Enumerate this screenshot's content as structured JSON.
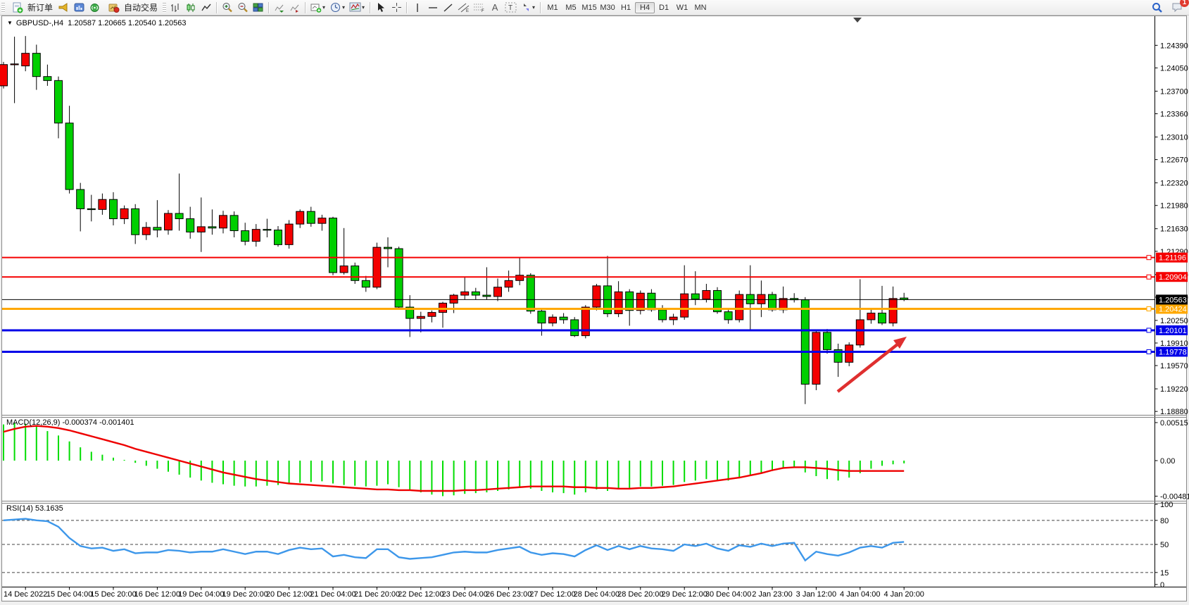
{
  "toolbar": {
    "new_order_label": "新订单",
    "autotrading_label": "自动交易",
    "timeframes": [
      "M1",
      "M5",
      "M15",
      "M30",
      "H1",
      "H4",
      "D1",
      "W1",
      "MN"
    ],
    "active_timeframe": "H4",
    "notification_count": "1"
  },
  "chart_header": {
    "symbol": "GBPUSD-,H4",
    "ohlc": "1.20587 1.20665 1.20540 1.20563"
  },
  "indicators": {
    "macd_label": "MACD(12,26,9) -0.000374 -0.001401",
    "macd_axis": [
      "0.00515",
      "0.00",
      "-0.004811"
    ],
    "rsi_label": "RSI(14) 53.1635",
    "rsi_levels": [
      "100",
      "80",
      "50",
      "15",
      "0"
    ]
  },
  "chart_data": {
    "type": "candlestick",
    "symbol": "GBPUSD-",
    "period": "H4",
    "current_price": 1.20563,
    "current_price_label": "1.20563",
    "bull_color": "#f40000",
    "bear_color": "#00cf00",
    "wick_color": "#000000",
    "macd_color": "#00dd00",
    "signal_color": "#ee0000",
    "rsi_color": "#3d97ea",
    "arrow_color": "#df2f2f",
    "price_ticks": [
      "1.24390",
      "1.24050",
      "1.23700",
      "1.23360",
      "1.23010",
      "1.22670",
      "1.22320",
      "1.21980",
      "1.21630",
      "1.21290",
      "1.20940",
      "1.20600",
      "1.20250",
      "1.19910",
      "1.19570",
      "1.19220",
      "1.18880"
    ],
    "time_labels": [
      "14 Dec 2022",
      "15 Dec 04:00",
      "15 Dec 20:00",
      "16 Dec 12:00",
      "19 Dec 04:00",
      "19 Dec 20:00",
      "20 Dec 12:00",
      "21 Dec 04:00",
      "21 Dec 20:00",
      "22 Dec 12:00",
      "23 Dec 04:00",
      "26 Dec 23:00",
      "27 Dec 12:00",
      "28 Dec 04:00",
      "28 Dec 20:00",
      "29 Dec 12:00",
      "30 Dec 04:00",
      "2 Jan 23:00",
      "3 Jan 12:00",
      "4 Jan 04:00",
      "4 Jan 20:00"
    ],
    "hlines": [
      {
        "name": "resistance-line-1",
        "price": 1.21196,
        "label": "1.21196",
        "color": "#f50000",
        "width": 2
      },
      {
        "name": "resistance-line-2",
        "price": 1.20904,
        "label": "1.20904",
        "color": "#f50000",
        "width": 2
      },
      {
        "name": "pivot-line",
        "price": 1.20424,
        "label": "1.20424",
        "color": "#ffa800",
        "width": 3
      },
      {
        "name": "support-line-1",
        "price": 1.20101,
        "label": "1.20101",
        "color": "#0000e8",
        "width": 3
      },
      {
        "name": "support-line-2",
        "price": 1.19778,
        "label": "1.19778",
        "color": "#0000e8",
        "width": 3
      }
    ],
    "candles": [
      [
        1.2378,
        1.2414,
        1.2374,
        1.241
      ],
      [
        1.241,
        1.2452,
        1.2352,
        1.2411
      ],
      [
        1.2408,
        1.2453,
        1.24,
        1.2427
      ],
      [
        1.2427,
        1.244,
        1.2372,
        1.2392
      ],
      [
        1.2392,
        1.241,
        1.2378,
        1.2386
      ],
      [
        1.2386,
        1.2392,
        1.2299,
        1.2322
      ],
      [
        1.2322,
        1.2348,
        1.2216,
        1.2222
      ],
      [
        1.2222,
        1.2232,
        1.2159,
        1.2193
      ],
      [
        1.2193,
        1.2214,
        1.2174,
        1.2192
      ],
      [
        1.2192,
        1.2216,
        1.2184,
        1.2207
      ],
      [
        1.2207,
        1.2218,
        1.2168,
        1.2178
      ],
      [
        1.2178,
        1.2198,
        1.217,
        1.2193
      ],
      [
        1.2193,
        1.22,
        1.214,
        1.2154
      ],
      [
        1.2154,
        1.2173,
        1.2146,
        1.2165
      ],
      [
        1.2165,
        1.2206,
        1.215,
        1.2161
      ],
      [
        1.2161,
        1.2191,
        1.2154,
        1.2186
      ],
      [
        1.2186,
        1.2246,
        1.216,
        1.2178
      ],
      [
        1.2178,
        1.2196,
        1.2148,
        1.2158
      ],
      [
        1.2158,
        1.221,
        1.2128,
        1.2166
      ],
      [
        1.2166,
        1.2192,
        1.2154,
        1.2164
      ],
      [
        1.2164,
        1.219,
        1.2156,
        1.2183
      ],
      [
        1.2183,
        1.2189,
        1.215,
        1.216
      ],
      [
        1.216,
        1.2172,
        1.2138,
        1.2144
      ],
      [
        1.2144,
        1.217,
        1.2136,
        1.2162
      ],
      [
        1.2162,
        1.2178,
        1.215,
        1.2161
      ],
      [
        1.2161,
        1.2167,
        1.2136,
        1.2139
      ],
      [
        1.2139,
        1.2176,
        1.2133,
        1.217
      ],
      [
        1.217,
        1.2192,
        1.2164,
        1.2189
      ],
      [
        1.2189,
        1.2196,
        1.2166,
        1.2171
      ],
      [
        1.2171,
        1.2184,
        1.216,
        1.2179
      ],
      [
        1.2179,
        1.2181,
        1.2093,
        1.2097
      ],
      [
        1.2097,
        1.2164,
        1.2094,
        1.2107
      ],
      [
        1.2107,
        1.2112,
        1.208,
        1.2085
      ],
      [
        1.2085,
        1.2092,
        1.2068,
        1.2075
      ],
      [
        1.2075,
        1.2142,
        1.2072,
        1.2135
      ],
      [
        1.2135,
        1.215,
        1.2105,
        1.2133
      ],
      [
        1.2133,
        1.2136,
        1.2041,
        1.2045
      ],
      [
        1.2045,
        1.2063,
        1.2,
        1.2028
      ],
      [
        1.2028,
        1.2038,
        1.2007,
        1.2031
      ],
      [
        1.2031,
        1.204,
        1.2022,
        1.2037
      ],
      [
        1.2037,
        1.2053,
        1.2014,
        1.2051
      ],
      [
        1.2051,
        1.2065,
        1.2036,
        1.2063
      ],
      [
        1.2063,
        1.209,
        1.2056,
        1.2068
      ],
      [
        1.2068,
        1.2074,
        1.2056,
        1.2063
      ],
      [
        1.2063,
        1.2105,
        1.2056,
        1.2061
      ],
      [
        1.2061,
        1.2088,
        1.2054,
        1.2075
      ],
      [
        1.2075,
        1.21,
        1.2068,
        1.2085
      ],
      [
        1.2085,
        1.2119,
        1.2078,
        1.2093
      ],
      [
        1.2093,
        1.2096,
        1.2035,
        1.2039
      ],
      [
        1.2039,
        1.2044,
        1.2002,
        1.2021
      ],
      [
        1.2021,
        1.2034,
        1.2016,
        1.203
      ],
      [
        1.203,
        1.2036,
        1.202,
        1.2026
      ],
      [
        1.2026,
        1.203,
        1.2,
        1.2002
      ],
      [
        1.2002,
        1.2048,
        1.1998,
        1.2045
      ],
      [
        1.2045,
        1.208,
        1.204,
        1.2077
      ],
      [
        1.2077,
        1.2122,
        1.203,
        1.2035
      ],
      [
        1.2035,
        1.2084,
        1.203,
        1.2068
      ],
      [
        1.2068,
        1.2072,
        1.2017,
        1.204
      ],
      [
        1.204,
        1.207,
        1.2034,
        1.2066
      ],
      [
        1.2066,
        1.2072,
        1.2038,
        1.2041
      ],
      [
        1.2041,
        1.2048,
        1.2022,
        1.2026
      ],
      [
        1.2026,
        1.2035,
        1.2018,
        1.203
      ],
      [
        1.203,
        1.2108,
        1.2026,
        1.2065
      ],
      [
        1.2065,
        1.2099,
        1.2048,
        1.2057
      ],
      [
        1.2057,
        1.208,
        1.2052,
        1.207
      ],
      [
        1.207,
        1.2075,
        1.2035,
        1.2038
      ],
      [
        1.2038,
        1.2044,
        1.202,
        1.2026
      ],
      [
        1.2026,
        1.207,
        1.2022,
        1.2064
      ],
      [
        1.2064,
        1.2108,
        1.201,
        1.205
      ],
      [
        1.205,
        1.2085,
        1.203,
        1.2064
      ],
      [
        1.2064,
        1.2068,
        1.2038,
        1.2041
      ],
      [
        1.2041,
        1.2076,
        1.2036,
        1.2058
      ],
      [
        1.2058,
        1.2066,
        1.2052,
        1.2056
      ],
      [
        1.2056,
        1.206,
        1.1899,
        1.1929
      ],
      [
        1.1929,
        1.201,
        1.192,
        1.2007
      ],
      [
        1.2007,
        1.2012,
        1.1975,
        1.1981
      ],
      [
        1.1981,
        1.199,
        1.194,
        1.1962
      ],
      [
        1.1962,
        1.1992,
        1.1956,
        1.1988
      ],
      [
        1.1988,
        1.2087,
        1.1984,
        1.2026
      ],
      [
        1.2026,
        1.2042,
        1.202,
        1.2036
      ],
      [
        1.2036,
        1.2077,
        1.2018,
        1.2021
      ],
      [
        1.2021,
        1.2076,
        1.2016,
        1.2058
      ],
      [
        1.20587,
        1.20665,
        1.2054,
        1.20563
      ]
    ],
    "macd_histogram": [
      0.0049,
      0.00515,
      0.005,
      0.0047,
      0.004,
      0.0034,
      0.0026,
      0.0018,
      0.0012,
      0.0008,
      0.0004,
      0.0001,
      -0.0003,
      -0.0007,
      -0.0011,
      -0.0015,
      -0.0019,
      -0.0023,
      -0.0027,
      -0.003,
      -0.0032,
      -0.0034,
      -0.0035,
      -0.0035,
      -0.0034,
      -0.0033,
      -0.0032,
      -0.003,
      -0.0029,
      -0.0028,
      -0.0031,
      -0.0033,
      -0.0034,
      -0.0035,
      -0.0034,
      -0.0032,
      -0.0036,
      -0.004,
      -0.0043,
      -0.0046,
      -0.004811,
      -0.0047,
      -0.0045,
      -0.0044,
      -0.0043,
      -0.0041,
      -0.0039,
      -0.0036,
      -0.0038,
      -0.0041,
      -0.0043,
      -0.0044,
      -0.0046,
      -0.0043,
      -0.0039,
      -0.0041,
      -0.0038,
      -0.0037,
      -0.0035,
      -0.0035,
      -0.0034,
      -0.0033,
      -0.0029,
      -0.0027,
      -0.0025,
      -0.0026,
      -0.0027,
      -0.0024,
      -0.002,
      -0.0017,
      -0.0014,
      -0.0011,
      -0.0009,
      -0.0016,
      -0.0021,
      -0.0025,
      -0.0027,
      -0.0023,
      -0.0017,
      -0.0011,
      -0.0007,
      -0.0005,
      -0.000374
    ],
    "macd_signal": [
      0.0039,
      0.0043,
      0.0046,
      0.0047,
      0.0046,
      0.0044,
      0.0041,
      0.0037,
      0.0033,
      0.0029,
      0.0025,
      0.0021,
      0.0016,
      0.0012,
      0.0008,
      0.0004,
      0.0,
      -0.0004,
      -0.0008,
      -0.0012,
      -0.0016,
      -0.0019,
      -0.0022,
      -0.0025,
      -0.0027,
      -0.0029,
      -0.0031,
      -0.0032,
      -0.0033,
      -0.0034,
      -0.0035,
      -0.0036,
      -0.0037,
      -0.0038,
      -0.0039,
      -0.0039,
      -0.004,
      -0.004,
      -0.0041,
      -0.0041,
      -0.0041,
      -0.0041,
      -0.004,
      -0.004,
      -0.0039,
      -0.0038,
      -0.0037,
      -0.0036,
      -0.0035,
      -0.0035,
      -0.0035,
      -0.0035,
      -0.0036,
      -0.0036,
      -0.0037,
      -0.0037,
      -0.0038,
      -0.0038,
      -0.0037,
      -0.0037,
      -0.0036,
      -0.0035,
      -0.0033,
      -0.0031,
      -0.0029,
      -0.0027,
      -0.0025,
      -0.0023,
      -0.002,
      -0.0017,
      -0.0013,
      -0.001,
      -0.0009,
      -0.0009,
      -0.001,
      -0.0011,
      -0.0013,
      -0.0014,
      -0.0014,
      -0.0014,
      -0.0014,
      -0.0014,
      -0.001401
    ],
    "rsi_values": [
      80,
      81,
      82,
      80,
      79,
      72,
      58,
      48,
      45,
      46,
      42,
      44,
      39,
      40,
      40,
      43,
      42,
      40,
      41,
      41,
      44,
      41,
      38,
      41,
      41,
      38,
      43,
      46,
      44,
      45,
      35,
      37,
      34,
      33,
      44,
      44,
      34,
      32,
      33,
      34,
      37,
      40,
      41,
      40,
      40,
      43,
      45,
      47,
      40,
      37,
      39,
      38,
      35,
      43,
      49,
      43,
      48,
      44,
      48,
      45,
      44,
      42,
      50,
      48,
      51,
      45,
      42,
      49,
      47,
      51,
      48,
      51,
      52,
      30,
      41,
      38,
      36,
      40,
      46,
      48,
      46,
      52,
      53.16
    ],
    "rsi_dashed_levels": [
      80,
      50,
      15
    ],
    "macd_range": [
      -0.004811,
      0.00515
    ],
    "rsi_range": [
      0,
      100
    ],
    "price_range": [
      1.1888,
      1.2439
    ]
  }
}
